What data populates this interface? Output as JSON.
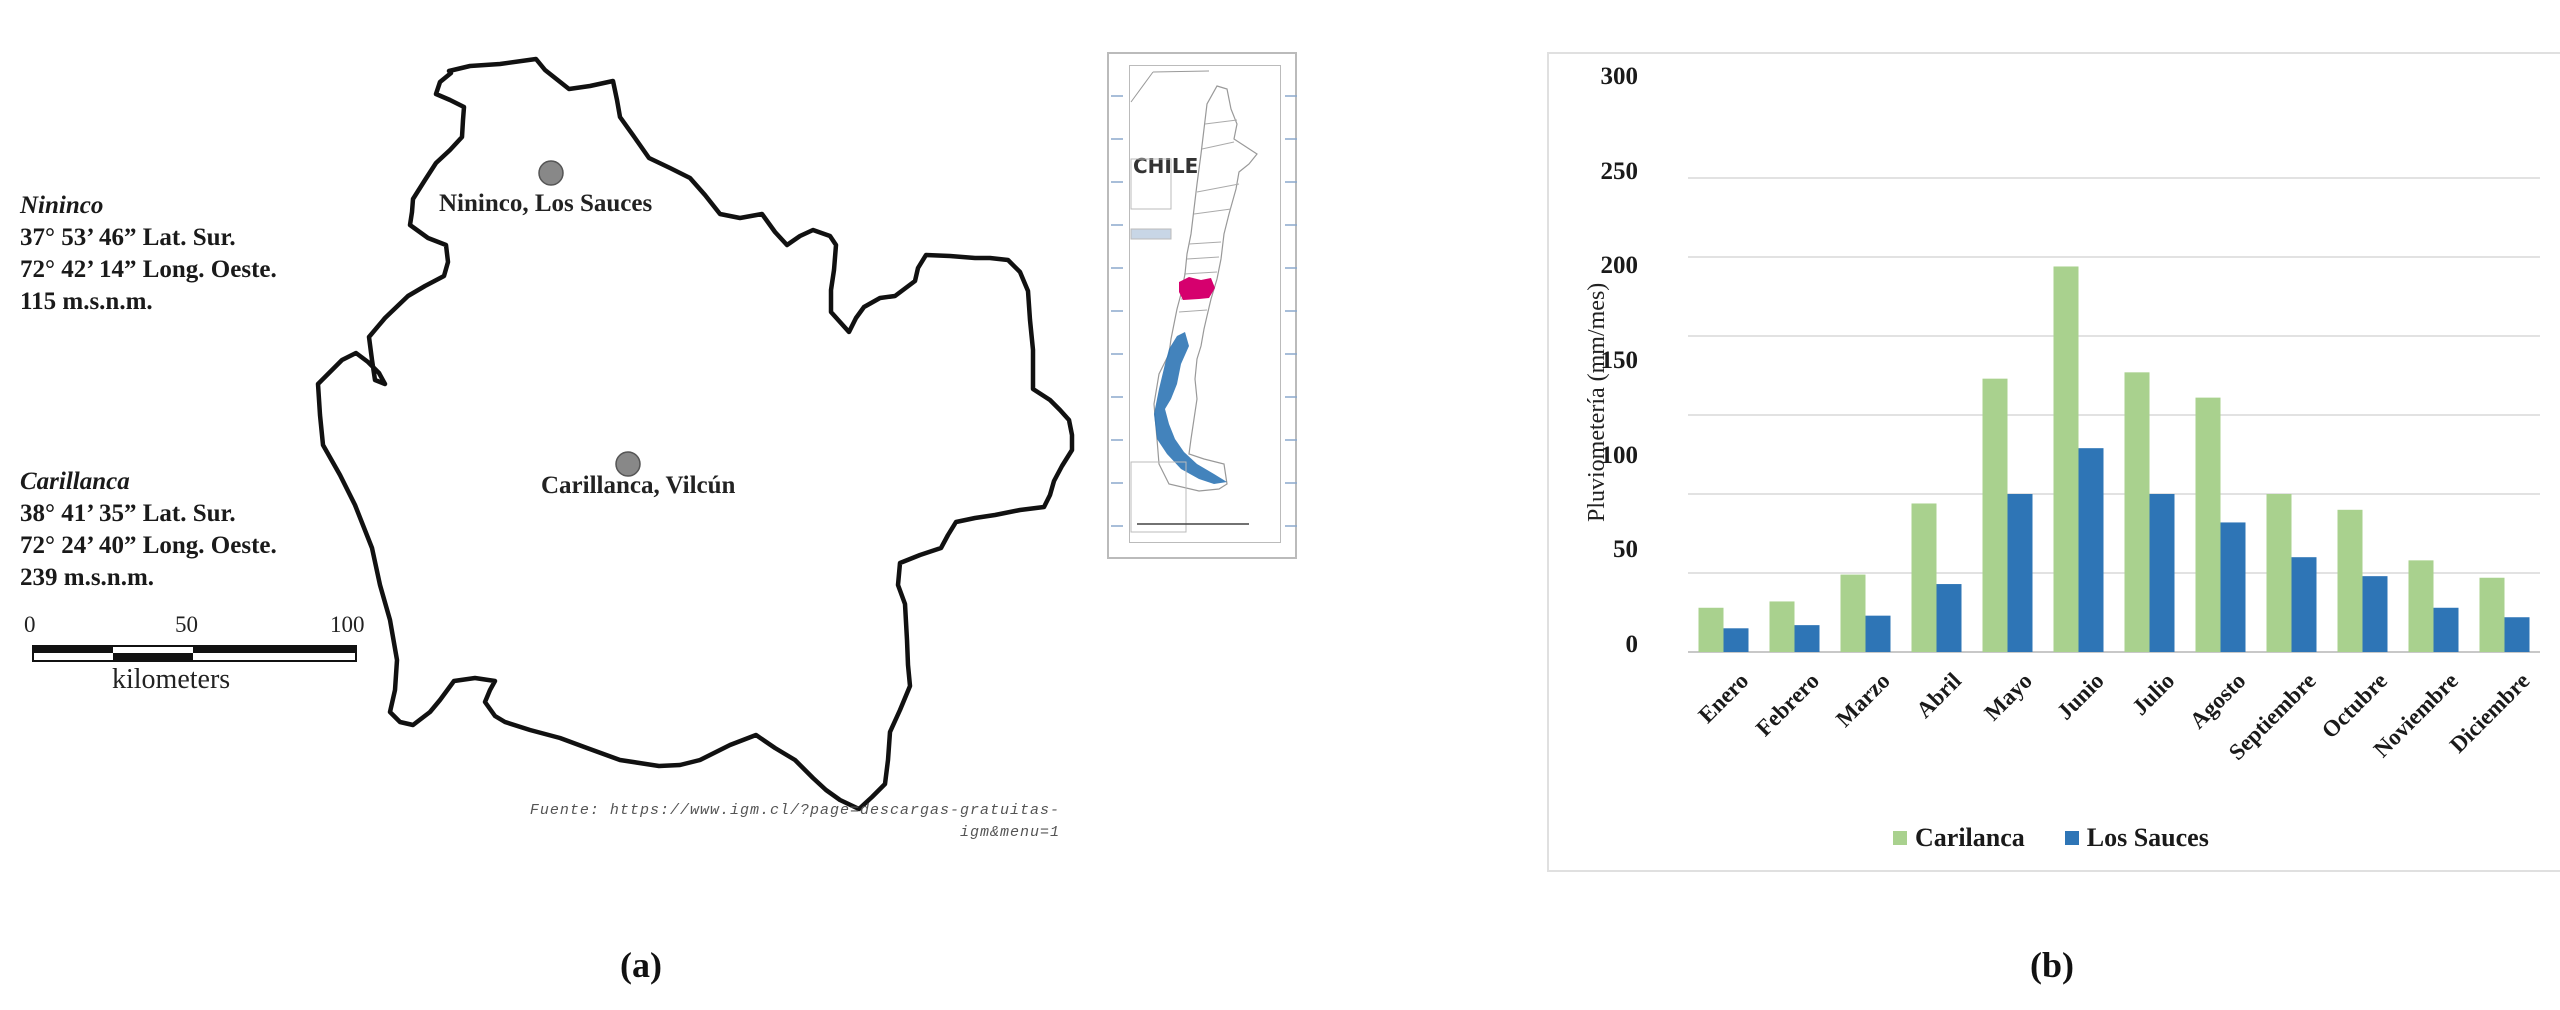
{
  "panel_a": {
    "label": "(a)",
    "stations": [
      {
        "name": "Nininco",
        "lat": "37° 53’ 46” Lat. Sur.",
        "lon": "72° 42’ 14” Long. Oeste.",
        "alt": "115 m.s.n.m.",
        "map_label": "Nininco, Los Sauces"
      },
      {
        "name": "Carillanca",
        "lat": "38° 41’ 35” Lat. Sur.",
        "lon": "72° 24’ 40” Long. Oeste.",
        "alt": "239 m.s.n.m.",
        "map_label": "Carillanca, Vilcún"
      }
    ],
    "scale_bar": {
      "ticks": [
        "0",
        "50",
        "100"
      ],
      "unit": "kilometers"
    },
    "inset": {
      "title": "CHILE",
      "highlight_color": "#d6006e",
      "fjord_color": "#2f75b5"
    },
    "source_line1": "Fuente: https://www.igm.cl/?page=descargas-gratuitas-",
    "source_line2": "igm&menu=1"
  },
  "panel_b": {
    "label": "(b)",
    "colors": {
      "Carilanca": "#a9d18e",
      "Los Sauces": "#2e75b6"
    }
  },
  "chart_data": {
    "type": "bar",
    "title": "",
    "xlabel": "",
    "ylabel": "Pluviometería (mm/mes)",
    "ylim": [
      0,
      300
    ],
    "yticks": [
      0,
      50,
      100,
      150,
      200,
      250,
      300
    ],
    "grid": true,
    "legend_position": "bottom",
    "categories": [
      "Enero",
      "Febrero",
      "Marzo",
      "Abril",
      "Mayo",
      "Junio",
      "Julio",
      "Agosto",
      "Septiembre",
      "Octubre",
      "Noviembre",
      "Diciembre"
    ],
    "series": [
      {
        "name": "Carilanca",
        "color": "#a9d18e",
        "values": [
          28,
          32,
          49,
          94,
          173,
          244,
          177,
          161,
          100,
          90,
          58,
          47
        ]
      },
      {
        "name": "Los Sauces",
        "color": "#2e75b6",
        "values": [
          15,
          17,
          23,
          43,
          100,
          129,
          100,
          82,
          60,
          48,
          28,
          22
        ]
      }
    ]
  }
}
